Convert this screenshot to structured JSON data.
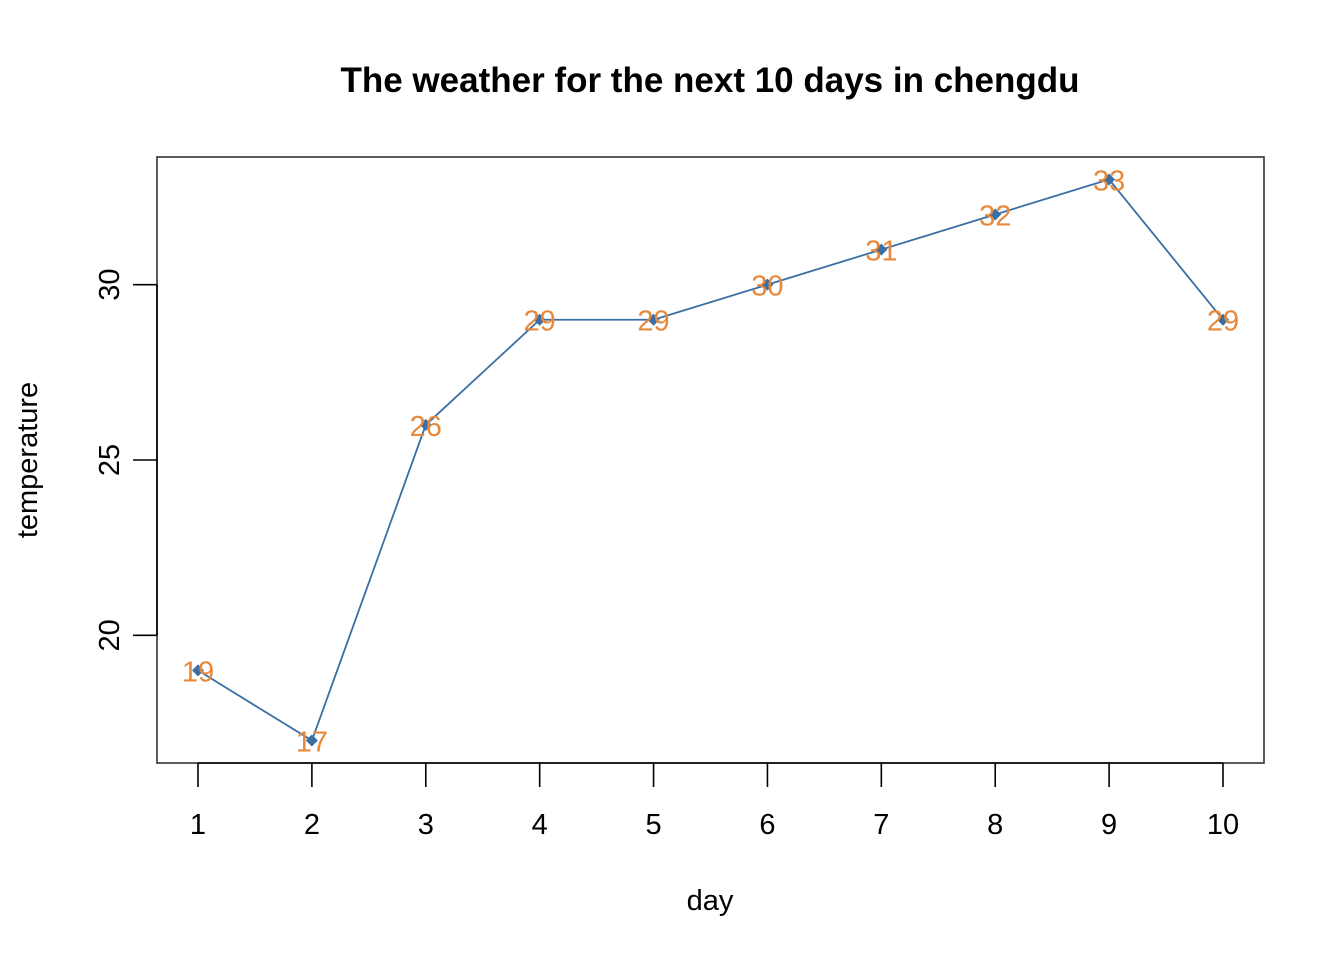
{
  "chart_data": {
    "type": "line",
    "title": "The weather for the next 10 days in chengdu",
    "xlabel": "day",
    "ylabel": "temperature",
    "x": [
      1,
      2,
      3,
      4,
      5,
      6,
      7,
      8,
      9,
      10
    ],
    "series": [
      {
        "values": [
          19,
          17,
          26,
          29,
          29,
          30,
          31,
          32,
          33,
          29
        ],
        "labels": [
          "19",
          "17",
          "26",
          "29",
          "29",
          "30",
          "31",
          "32",
          "33",
          "29"
        ]
      }
    ],
    "xticks": [
      "1",
      "2",
      "3",
      "4",
      "5",
      "6",
      "7",
      "8",
      "9",
      "10"
    ],
    "yticks": [
      "20",
      "25",
      "30"
    ],
    "xlim": [
      0.64,
      10.36
    ],
    "ylim": [
      16.36,
      33.64
    ],
    "grid": false,
    "marker": "diamond",
    "colors": {
      "line": "#3a6fa3",
      "marker": "#3a6fa3",
      "data_label": "#e8883a",
      "axis": "#000000",
      "frame": "#333333"
    }
  }
}
